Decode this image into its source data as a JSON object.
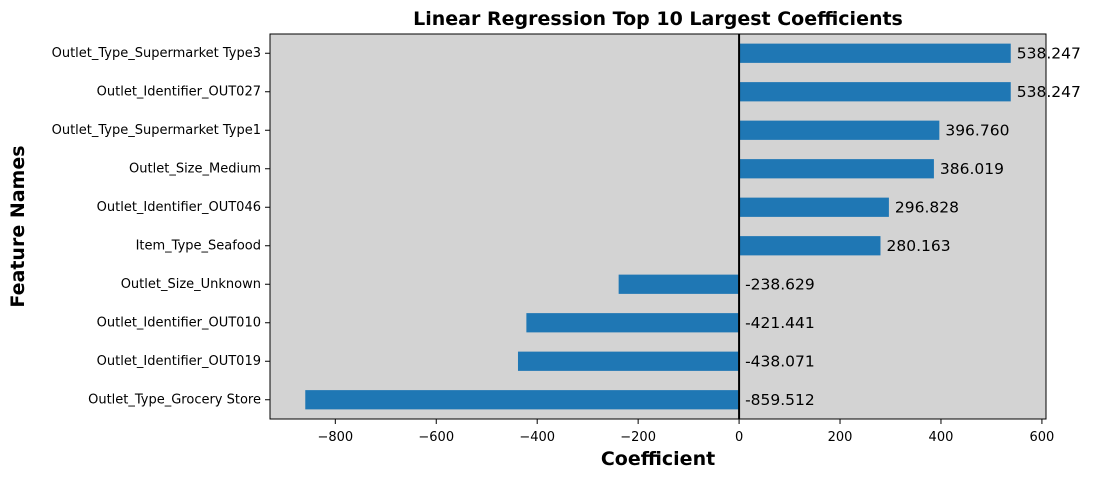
{
  "chart_data": {
    "type": "bar",
    "orientation": "horizontal",
    "title": "Linear Regression Top 10 Largest Coefficients",
    "xlabel": "Coefficient",
    "ylabel": "Feature Names",
    "categories": [
      "Outlet_Type_Supermarket Type3",
      "Outlet_Identifier_OUT027",
      "Outlet_Type_Supermarket Type1",
      "Outlet_Size_Medium",
      "Outlet_Identifier_OUT046",
      "Item_Type_Seafood",
      "Outlet_Size_Unknown",
      "Outlet_Identifier_OUT010",
      "Outlet_Identifier_OUT019",
      "Outlet_Type_Grocery Store"
    ],
    "values": [
      538.247,
      538.247,
      396.76,
      386.019,
      296.828,
      280.163,
      -238.629,
      -421.441,
      -438.071,
      -859.512
    ],
    "value_labels": [
      "538.247",
      "538.247",
      "396.760",
      "386.019",
      "296.828",
      "280.163",
      "-238.629",
      "-421.441",
      "-438.071",
      "-859.512"
    ],
    "xlim": [
      -929.4,
      608.1
    ],
    "xticks": [
      -800,
      -600,
      -400,
      -200,
      0,
      200,
      400,
      600
    ],
    "xtick_labels": [
      "−800",
      "−600",
      "−400",
      "−200",
      "0",
      "200",
      "400",
      "600"
    ],
    "grid": false,
    "colors": {
      "bar": "#1f77b4",
      "plot_background": "#d3d3d3",
      "zero_line": "#000000"
    }
  }
}
